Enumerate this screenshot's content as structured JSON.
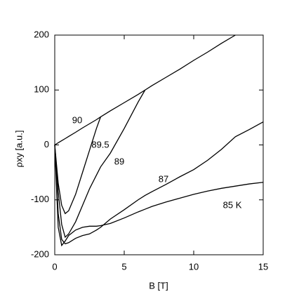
{
  "chart_data": {
    "type": "line",
    "xlabel": "B [T]",
    "ylabel": "ρxy  [a.u.]",
    "x": [
      0,
      0.25,
      0.5,
      0.75,
      1,
      1.5,
      2,
      2.5,
      3,
      3.3,
      4,
      5,
      6,
      6.5,
      7,
      8,
      9,
      10,
      11,
      12,
      13,
      14,
      15
    ],
    "series": [
      {
        "name": "90",
        "color": "#000000",
        "values": [
          0,
          3.85,
          7.7,
          11.5,
          15.4,
          23,
          31,
          38.5,
          46,
          51,
          62,
          77,
          92,
          100,
          108,
          123,
          138,
          154,
          169,
          185,
          200,
          null,
          null
        ]
      },
      {
        "name": "89.5",
        "color": "#000000",
        "values": [
          0,
          -70,
          -110,
          -125,
          -120,
          -90,
          -50,
          -10,
          30,
          51,
          null,
          null,
          null,
          null,
          null,
          null,
          null,
          null,
          null,
          null,
          null,
          null,
          null
        ]
      },
      {
        "name": "89",
        "color": "#000000",
        "values": [
          0,
          -85,
          -145,
          -168,
          -162,
          -140,
          -110,
          -80,
          -55,
          -40,
          -15,
          30,
          78,
          100,
          null,
          null,
          null,
          null,
          null,
          null,
          null,
          null,
          null
        ]
      },
      {
        "name": "87",
        "color": "#000000",
        "values": [
          0,
          -125,
          -172,
          -180,
          -178,
          -170,
          -165,
          -162,
          -155,
          -150,
          -135,
          -118,
          -100,
          -92,
          -85,
          -72,
          -58,
          -45,
          -28,
          -8,
          15,
          28,
          42
        ]
      },
      {
        "name": "85 K",
        "color": "#000000",
        "values": [
          0,
          -150,
          -183,
          -175,
          -165,
          -155,
          -150,
          -148,
          -148,
          -147,
          -143,
          -133,
          -122,
          -117,
          -112,
          -104,
          -97,
          -90,
          -84,
          -79,
          -75,
          -71,
          -68
        ]
      }
    ],
    "xlim": [
      0,
      15
    ],
    "xticks": [
      0,
      5,
      10,
      15
    ],
    "ylim": [
      -200,
      200
    ],
    "yticks": [
      -200,
      -100,
      0,
      100,
      200
    ],
    "grid": false
  }
}
